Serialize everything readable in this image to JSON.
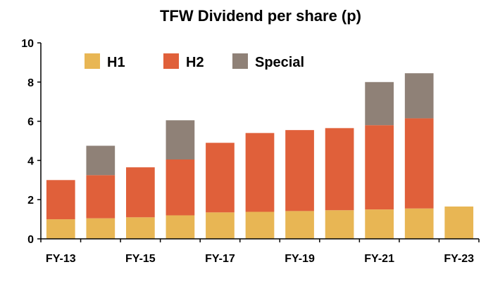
{
  "chart_data": {
    "type": "bar",
    "stacked": true,
    "title": "TFW Dividend per share (p)",
    "xlabel": "",
    "ylabel": "",
    "categories": [
      "FY-13",
      "FY-14",
      "FY-15",
      "FY-16",
      "FY-17",
      "FY-18",
      "FY-19",
      "FY-20",
      "FY-21",
      "FY-22",
      "FY-23"
    ],
    "x_tick_labels": [
      "FY-13",
      "",
      "FY-15",
      "",
      "FY-17",
      "",
      "FY-19",
      "",
      "FY-21",
      "",
      "FY-23"
    ],
    "series": [
      {
        "name": "H1",
        "color": "#e8b654",
        "values": [
          1.0,
          1.05,
          1.1,
          1.2,
          1.35,
          1.38,
          1.42,
          1.46,
          1.5,
          1.55,
          1.65
        ]
      },
      {
        "name": "H2",
        "color": "#e0603a",
        "values": [
          2.0,
          2.2,
          2.55,
          2.85,
          3.55,
          4.02,
          4.13,
          4.19,
          4.3,
          4.6,
          0
        ]
      },
      {
        "name": "Special",
        "color": "#8f8177",
        "values": [
          0,
          1.5,
          0,
          2.0,
          0,
          0,
          0,
          0,
          2.2,
          2.3,
          0
        ]
      }
    ],
    "ylim": [
      0,
      10
    ],
    "yticks": [
      0,
      2,
      4,
      6,
      8,
      10
    ],
    "grid": false,
    "legend_position": "top-left"
  }
}
